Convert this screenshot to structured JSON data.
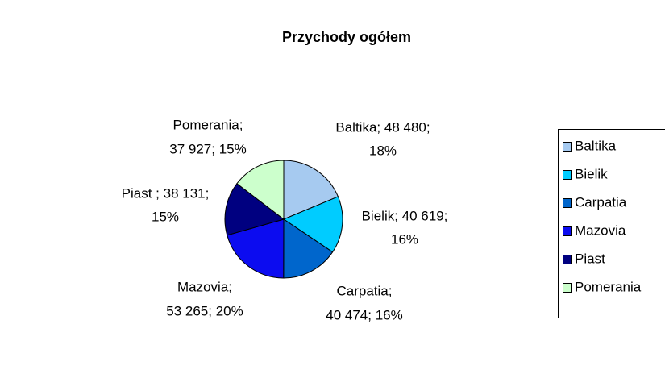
{
  "chart_data": {
    "type": "pie",
    "title": "Przychody ogółem",
    "categories": [
      "Baltika",
      "Bielik",
      "Carpatia",
      "Mazovia",
      "Piast",
      "Pomerania"
    ],
    "values": [
      48480,
      40619,
      40474,
      53265,
      38131,
      37927
    ],
    "value_labels": [
      [
        "Baltika; 48 480;",
        "18%"
      ],
      [
        "Bielik; 40 619;",
        "16%"
      ],
      [
        "Carpatia;",
        "40 474; 16%"
      ],
      [
        "Mazovia;",
        "53 265; 20%"
      ],
      [
        "Piast ; 38 131;",
        "15%"
      ],
      [
        "Pomerania;",
        "37 927; 15%"
      ]
    ],
    "colors": [
      "#a6caf0",
      "#00ccff",
      "#0066cc",
      "#0c0cf0",
      "#000080",
      "#ccffcc"
    ],
    "legend": "right"
  }
}
